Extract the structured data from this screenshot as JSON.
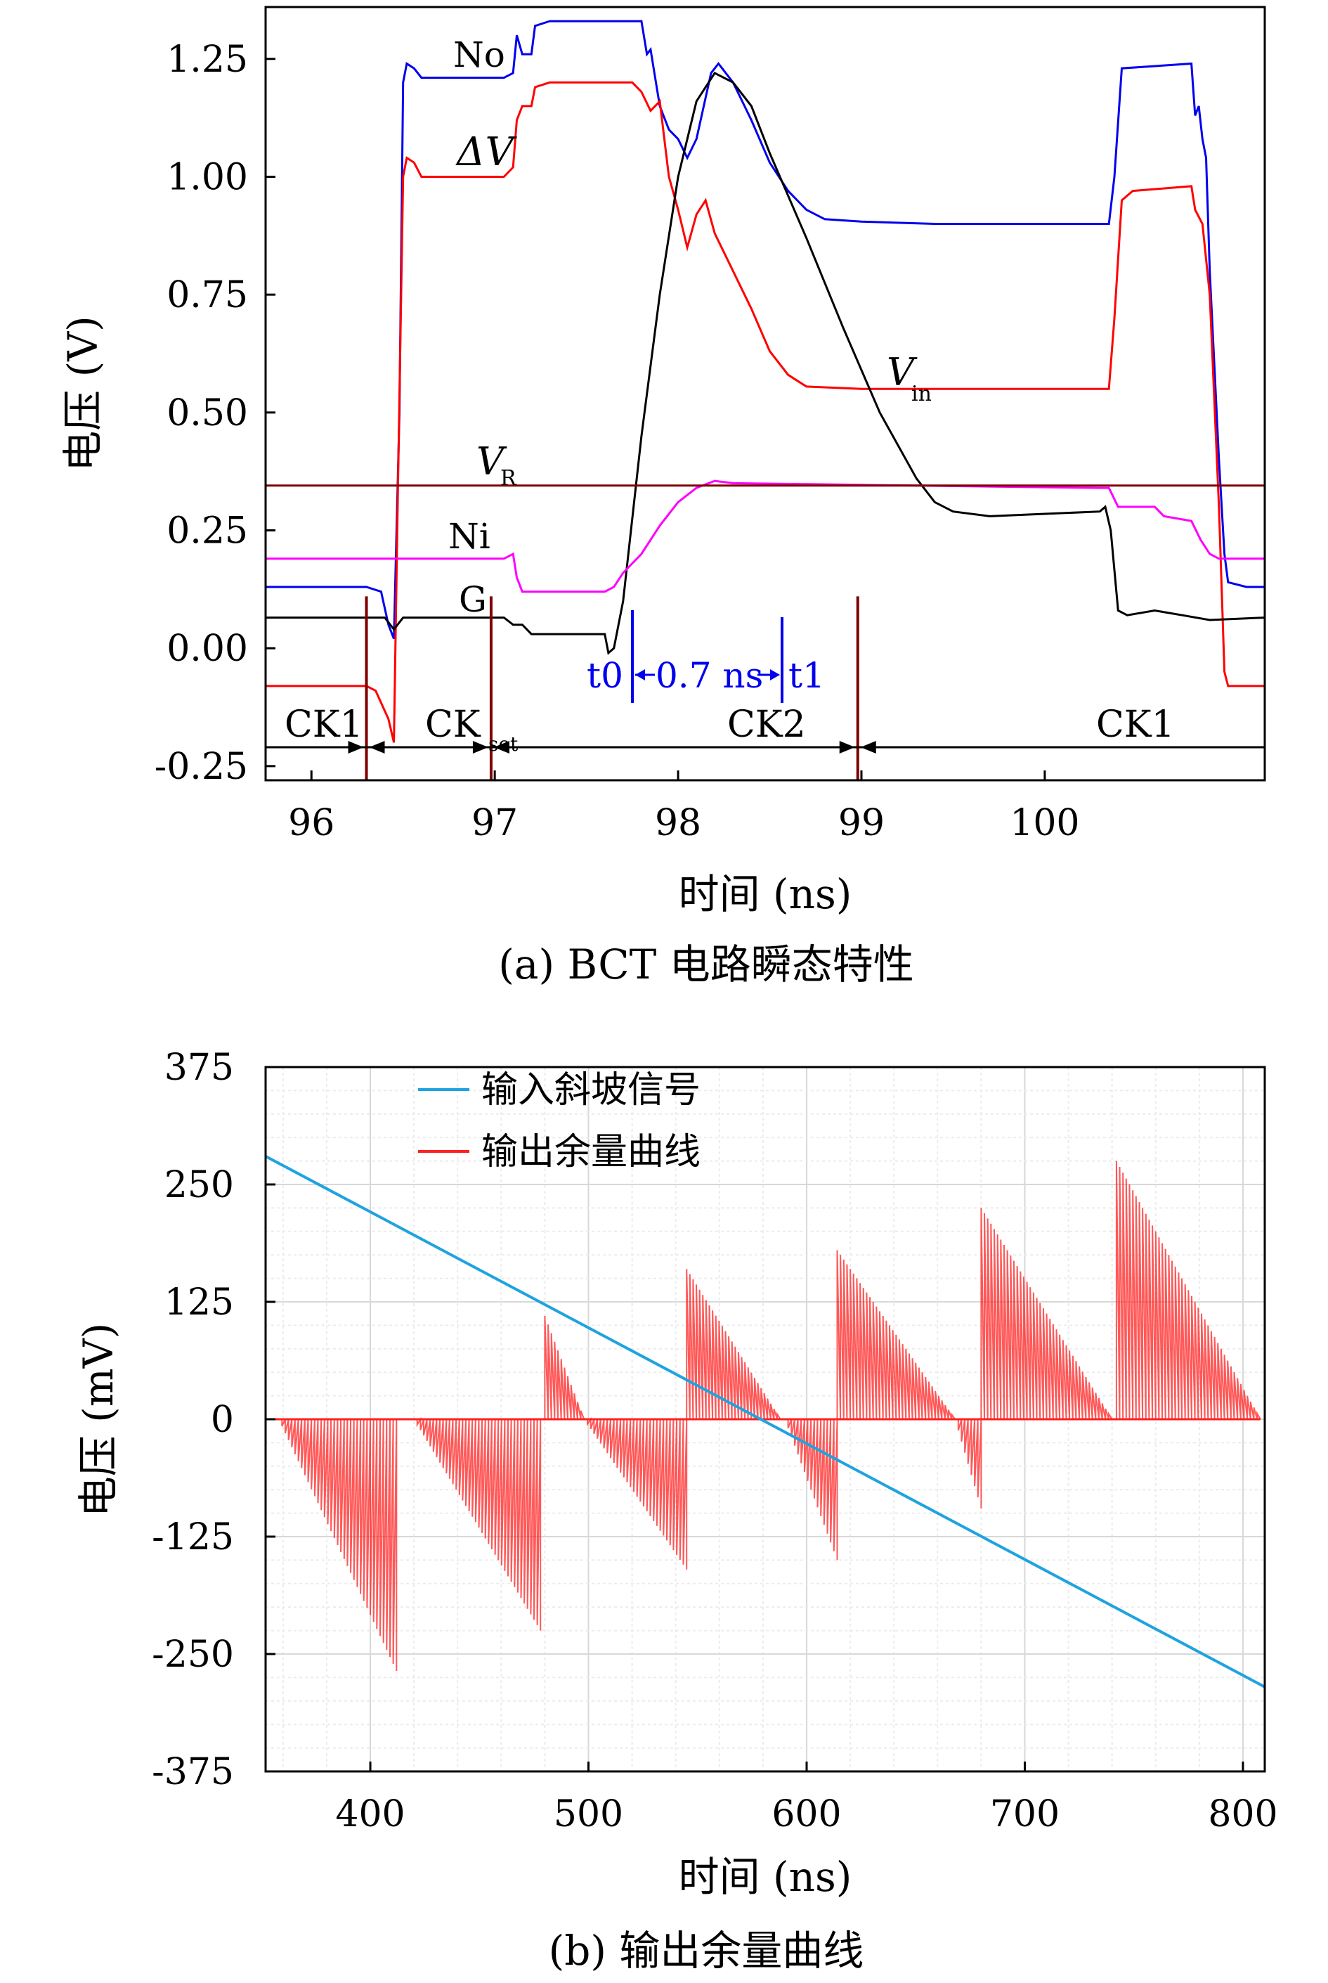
{
  "chart_data": [
    {
      "type": "line",
      "caption": "(a) BCT 电路瞬态特性",
      "xlabel": "时间 (ns)",
      "ylabel": "电压 (V)",
      "xlim": [
        95.75,
        101.2
      ],
      "ylim": [
        -0.28,
        1.36
      ],
      "xticks": [
        "96",
        "97",
        "98",
        "99",
        "100"
      ],
      "yticks": [
        "-0.25",
        "0.00",
        "0.25",
        "0.50",
        "0.75",
        "1.00",
        "1.25"
      ],
      "grid": false,
      "series": [
        {
          "name": "No",
          "color": "#0000ee",
          "points": [
            [
              95.75,
              0.13
            ],
            [
              96.3,
              0.13
            ],
            [
              96.38,
              0.12
            ],
            [
              96.42,
              0.05
            ],
            [
              96.45,
              0.02
            ],
            [
              96.48,
              0.5
            ],
            [
              96.5,
              1.2
            ],
            [
              96.52,
              1.24
            ],
            [
              96.56,
              1.23
            ],
            [
              96.6,
              1.21
            ],
            [
              97.05,
              1.21
            ],
            [
              97.1,
              1.22
            ],
            [
              97.12,
              1.3
            ],
            [
              97.15,
              1.26
            ],
            [
              97.2,
              1.26
            ],
            [
              97.22,
              1.32
            ],
            [
              97.3,
              1.33
            ],
            [
              97.8,
              1.33
            ],
            [
              97.83,
              1.26
            ],
            [
              97.85,
              1.27
            ],
            [
              97.9,
              1.15
            ],
            [
              97.95,
              1.1
            ],
            [
              98.0,
              1.08
            ],
            [
              98.05,
              1.04
            ],
            [
              98.1,
              1.08
            ],
            [
              98.18,
              1.22
            ],
            [
              98.22,
              1.24
            ],
            [
              98.3,
              1.2
            ],
            [
              98.4,
              1.12
            ],
            [
              98.5,
              1.03
            ],
            [
              98.6,
              0.97
            ],
            [
              98.7,
              0.93
            ],
            [
              98.8,
              0.91
            ],
            [
              99.0,
              0.905
            ],
            [
              99.4,
              0.9
            ],
            [
              100.2,
              0.9
            ],
            [
              100.35,
              0.9
            ],
            [
              100.38,
              1.0
            ],
            [
              100.42,
              1.23
            ],
            [
              100.8,
              1.24
            ],
            [
              100.82,
              1.13
            ],
            [
              100.84,
              1.15
            ],
            [
              100.86,
              1.08
            ],
            [
              100.88,
              1.04
            ],
            [
              100.9,
              0.8
            ],
            [
              100.95,
              0.4
            ],
            [
              100.98,
              0.2
            ],
            [
              101.0,
              0.14
            ],
            [
              101.1,
              0.13
            ],
            [
              101.2,
              0.13
            ]
          ]
        },
        {
          "name": "ΔV",
          "color": "#ff0000",
          "points": [
            [
              95.75,
              -0.08
            ],
            [
              96.3,
              -0.08
            ],
            [
              96.35,
              -0.09
            ],
            [
              96.42,
              -0.15
            ],
            [
              96.45,
              -0.2
            ],
            [
              96.47,
              0.3
            ],
            [
              96.5,
              1.0
            ],
            [
              96.52,
              1.04
            ],
            [
              96.56,
              1.03
            ],
            [
              96.6,
              1.0
            ],
            [
              97.05,
              1.0
            ],
            [
              97.1,
              1.02
            ],
            [
              97.12,
              1.12
            ],
            [
              97.15,
              1.15
            ],
            [
              97.2,
              1.15
            ],
            [
              97.22,
              1.19
            ],
            [
              97.3,
              1.2
            ],
            [
              97.75,
              1.2
            ],
            [
              97.8,
              1.18
            ],
            [
              97.85,
              1.14
            ],
            [
              97.9,
              1.16
            ],
            [
              97.95,
              1.0
            ],
            [
              98.0,
              0.93
            ],
            [
              98.05,
              0.85
            ],
            [
              98.1,
              0.92
            ],
            [
              98.15,
              0.95
            ],
            [
              98.2,
              0.88
            ],
            [
              98.3,
              0.8
            ],
            [
              98.4,
              0.72
            ],
            [
              98.5,
              0.63
            ],
            [
              98.6,
              0.58
            ],
            [
              98.7,
              0.555
            ],
            [
              99.0,
              0.55
            ],
            [
              100.0,
              0.55
            ],
            [
              100.35,
              0.55
            ],
            [
              100.38,
              0.7
            ],
            [
              100.42,
              0.95
            ],
            [
              100.48,
              0.97
            ],
            [
              100.8,
              0.98
            ],
            [
              100.82,
              0.93
            ],
            [
              100.86,
              0.9
            ],
            [
              100.9,
              0.75
            ],
            [
              100.95,
              0.3
            ],
            [
              100.98,
              -0.05
            ],
            [
              101.0,
              -0.08
            ],
            [
              101.2,
              -0.08
            ]
          ]
        },
        {
          "name": "Vin",
          "color": "#000000",
          "points": [
            [
              95.75,
              0.065
            ],
            [
              96.4,
              0.065
            ],
            [
              96.45,
              0.04
            ],
            [
              96.5,
              0.065
            ],
            [
              97.05,
              0.065
            ],
            [
              97.1,
              0.05
            ],
            [
              97.15,
              0.05
            ],
            [
              97.2,
              0.03
            ],
            [
              97.6,
              0.03
            ],
            [
              97.62,
              -0.01
            ],
            [
              97.65,
              0.0
            ],
            [
              97.7,
              0.1
            ],
            [
              97.8,
              0.45
            ],
            [
              97.9,
              0.75
            ],
            [
              98.0,
              1.0
            ],
            [
              98.1,
              1.16
            ],
            [
              98.2,
              1.22
            ],
            [
              98.3,
              1.2
            ],
            [
              98.4,
              1.15
            ],
            [
              98.5,
              1.05
            ],
            [
              98.7,
              0.87
            ],
            [
              98.9,
              0.68
            ],
            [
              99.1,
              0.5
            ],
            [
              99.3,
              0.36
            ],
            [
              99.4,
              0.31
            ],
            [
              99.5,
              0.29
            ],
            [
              99.7,
              0.28
            ],
            [
              100.0,
              0.285
            ],
            [
              100.3,
              0.29
            ],
            [
              100.33,
              0.3
            ],
            [
              100.36,
              0.25
            ],
            [
              100.4,
              0.08
            ],
            [
              100.45,
              0.07
            ],
            [
              100.6,
              0.08
            ],
            [
              100.75,
              0.07
            ],
            [
              100.9,
              0.06
            ],
            [
              101.2,
              0.065
            ]
          ]
        },
        {
          "name": "Ni",
          "color": "#ff00ff",
          "points": [
            [
              95.75,
              0.19
            ],
            [
              97.05,
              0.19
            ],
            [
              97.1,
              0.2
            ],
            [
              97.12,
              0.15
            ],
            [
              97.15,
              0.12
            ],
            [
              97.6,
              0.12
            ],
            [
              97.65,
              0.13
            ],
            [
              97.7,
              0.16
            ],
            [
              97.8,
              0.2
            ],
            [
              97.9,
              0.26
            ],
            [
              98.0,
              0.31
            ],
            [
              98.1,
              0.34
            ],
            [
              98.2,
              0.355
            ],
            [
              98.3,
              0.35
            ],
            [
              100.3,
              0.34
            ],
            [
              100.35,
              0.34
            ],
            [
              100.4,
              0.3
            ],
            [
              100.6,
              0.3
            ],
            [
              100.65,
              0.28
            ],
            [
              100.8,
              0.27
            ],
            [
              100.85,
              0.23
            ],
            [
              100.9,
              0.2
            ],
            [
              100.95,
              0.19
            ],
            [
              101.2,
              0.19
            ]
          ]
        },
        {
          "name": "VR",
          "color": "#800000",
          "points": [
            [
              95.75,
              0.345
            ],
            [
              101.2,
              0.345
            ]
          ]
        }
      ],
      "annotations": {
        "curve_labels": [
          "No",
          "ΔV",
          "V",
          "in",
          "V",
          "R",
          "Ni",
          "G"
        ],
        "markers": [
          "t0",
          "0.7 ns",
          "t1"
        ],
        "clock_phases": [
          "CK1",
          "CK",
          "set",
          "CK2",
          "CK1"
        ]
      }
    },
    {
      "type": "line",
      "caption": "(b) 输出余量曲线",
      "xlabel": "时间 (ns)",
      "ylabel": "电压 (mV)",
      "xlim": [
        352,
        810
      ],
      "ylim": [
        -375,
        375
      ],
      "xticks": [
        "400",
        "500",
        "600",
        "700",
        "800"
      ],
      "yticks": [
        "-375",
        "-250",
        "-125",
        "0",
        "125",
        "250",
        "375"
      ],
      "grid": true,
      "legend": "top-left",
      "series": [
        {
          "name": "输入斜坡信号",
          "color": "#1fa3e0",
          "points": [
            [
              352,
              280
            ],
            [
              810,
              -285
            ]
          ]
        },
        {
          "name": "输出余量曲线",
          "color": "#ff2020",
          "segments": [
            {
              "x0": 358,
              "x1": 412,
              "peak": -268,
              "sign": -1
            },
            {
              "x0": 420,
              "x1": 478,
              "peak": -225,
              "sign": -1
            },
            {
              "x0": 480,
              "x1": 498,
              "peak": 110,
              "sign": 1
            },
            {
              "x0": 498,
              "x1": 545,
              "peak": -160,
              "sign": -1
            },
            {
              "x0": 545,
              "x1": 588,
              "peak": 160,
              "sign": 1
            },
            {
              "x0": 590,
              "x1": 614,
              "peak": -150,
              "sign": -1
            },
            {
              "x0": 614,
              "x1": 668,
              "peak": 180,
              "sign": 1
            },
            {
              "x0": 668,
              "x1": 680,
              "peak": -95,
              "sign": -1
            },
            {
              "x0": 680,
              "x1": 740,
              "peak": 225,
              "sign": 1
            },
            {
              "x0": 742,
              "x1": 808,
              "peak": 275,
              "sign": 1
            }
          ]
        }
      ]
    }
  ]
}
